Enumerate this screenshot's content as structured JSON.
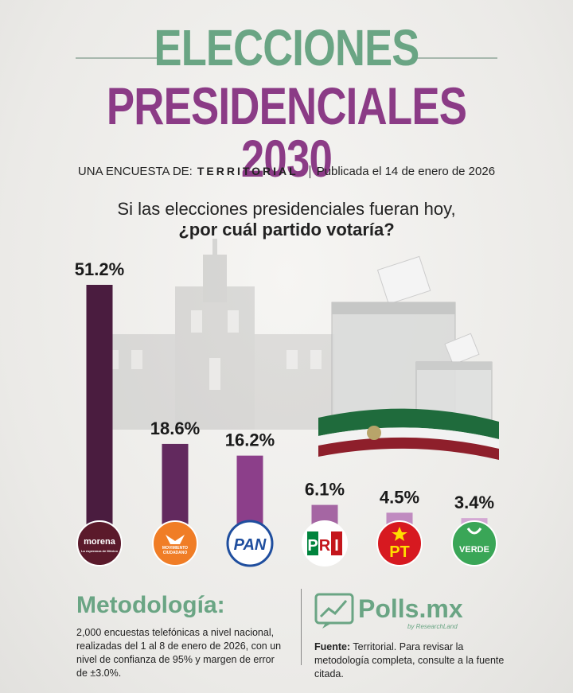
{
  "header": {
    "title_line1": "ELECCIONES",
    "title_line2": "PRESIDENCIALES 2030",
    "survey_prefix": "UNA ENCUESTA DE:",
    "survey_brand": "TERRITORIAL",
    "published": "Publicada el 14 de enero de 2026"
  },
  "question": {
    "line1": "Si las elecciones presidenciales fueran hoy,",
    "line2": "¿por cuál partido votaría?"
  },
  "chart_data": {
    "type": "bar",
    "categories": [
      "Morena",
      "Movimiento Ciudadano",
      "PAN",
      "PRI",
      "PT",
      "Verde"
    ],
    "values": [
      51.2,
      18.6,
      16.2,
      6.1,
      4.5,
      3.4
    ],
    "value_labels": [
      "51.2%",
      "18.6%",
      "16.2%",
      "6.1%",
      "4.5%",
      "3.4%"
    ],
    "bar_colors": [
      "#4a1c3f",
      "#62295e",
      "#8c3f8a",
      "#a566a3",
      "#c08bc0",
      "#d3a8d3"
    ],
    "logos": [
      {
        "text": "morena",
        "subtext": "La esperanza de México",
        "bg": "#5b1a2b",
        "fg": "#ffffff"
      },
      {
        "text": "MOVIMIENTO CIUDADANO",
        "bg": "#f07d26",
        "fg": "#ffffff"
      },
      {
        "text": "PAN",
        "bg": "#ffffff",
        "fg": "#1f4e9e",
        "ring": "#1f4e9e"
      },
      {
        "text": "PRI",
        "bg": "#ffffff",
        "fg": "#c4161c"
      },
      {
        "text": "PT",
        "bg": "#d71920",
        "fg": "#ffde00"
      },
      {
        "text": "VERDE",
        "bg": "#3aa657",
        "fg": "#ffffff"
      }
    ]
  },
  "methodology": {
    "title": "Metodología:",
    "body": "2,000 encuestas telefónicas a nivel nacional, realizadas del 1 al 8 de enero de 2026, con un nivel de confianza de 95% y margen de error de ±3.0%."
  },
  "footer": {
    "brand": "Polls.mx",
    "brand_sub": "by ResearchLand",
    "source_label": "Fuente:",
    "source_text": " Territorial. Para revisar la metodología completa, consulte a la fuente citada."
  }
}
